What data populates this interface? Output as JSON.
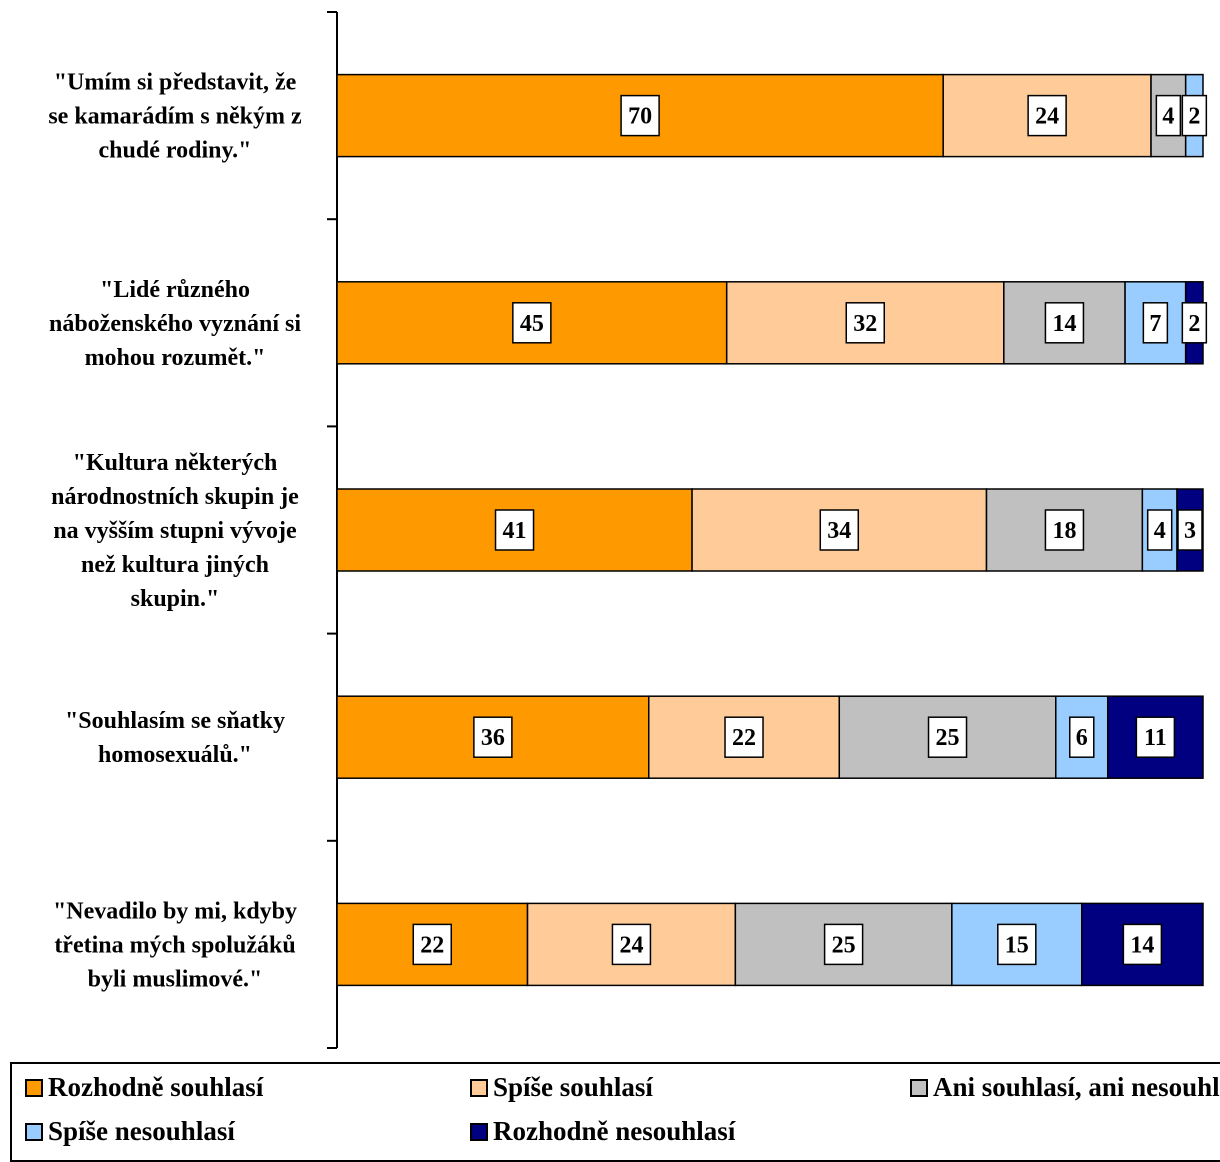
{
  "chart_data": {
    "type": "bar",
    "orientation": "horizontal",
    "stacked": true,
    "categories": [
      [
        "\"Umím si představit, že",
        "se kamarádím s někým z",
        "chudé rodiny.\""
      ],
      [
        "\"Lidé různého",
        "náboženského vyznání si",
        "mohou rozumět.\""
      ],
      [
        "\"Kultura některých",
        "národnostních skupin je",
        "na vyšším stupni vývoje",
        "než kultura jiných",
        "skupin.\""
      ],
      [
        "\"Souhlasím se sňatky",
        "homosexuálů.\""
      ],
      [
        "\"Nevadilo by mi, kdyby",
        "třetina mých spolužáků",
        "byli muslimové.\""
      ]
    ],
    "series": [
      {
        "name": "Rozhodně souhlasí",
        "color": "#FF9900",
        "values": [
          70,
          45,
          41,
          36,
          22
        ]
      },
      {
        "name": "Spíše souhlasí",
        "color": "#FFCC99",
        "values": [
          24,
          32,
          34,
          22,
          24
        ]
      },
      {
        "name": "Ani souhlasí,  ani nesouhlasí",
        "color": "#C0C0C0",
        "values": [
          4,
          14,
          18,
          25,
          25
        ]
      },
      {
        "name": "Spíše nesouhlasí",
        "color": "#99CCFF",
        "values": [
          2,
          7,
          4,
          6,
          15
        ]
      },
      {
        "name": "Rozhodně nesouhlasí",
        "color": "#000080",
        "values": [
          0,
          2,
          3,
          11,
          14
        ]
      }
    ],
    "legend_position": "bottom",
    "grid": false
  }
}
